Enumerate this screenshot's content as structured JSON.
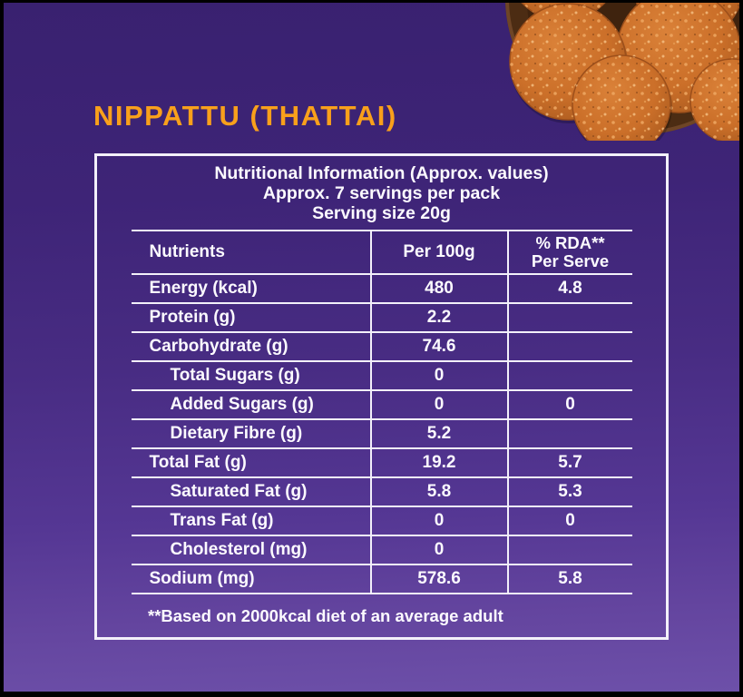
{
  "page": {
    "title": "NIPPATTU (THATTAI)"
  },
  "photo": {
    "alt": "plate-of-nippattu-crackers"
  },
  "table": {
    "header_lines": [
      "Nutritional Information (Approx. values)",
      "Approx. 7 servings per pack",
      "Serving size 20g"
    ],
    "columns": {
      "nutrients": "Nutrients",
      "per100g": "Per 100g",
      "rda_line1": "% RDA**",
      "rda_line2": "Per Serve"
    },
    "rows": [
      {
        "label": "Energy (kcal)",
        "per100g": "480",
        "rda": "4.8",
        "indent": false
      },
      {
        "label": "Protein (g)",
        "per100g": "2.2",
        "rda": "",
        "indent": false
      },
      {
        "label": "Carbohydrate (g)",
        "per100g": "74.6",
        "rda": "",
        "indent": false
      },
      {
        "label": "Total Sugars (g)",
        "per100g": "0",
        "rda": "",
        "indent": true
      },
      {
        "label": "Added Sugars (g)",
        "per100g": "0",
        "rda": "0",
        "indent": true
      },
      {
        "label": "Dietary Fibre (g)",
        "per100g": "5.2",
        "rda": "",
        "indent": true
      },
      {
        "label": "Total Fat (g)",
        "per100g": "19.2",
        "rda": "5.7",
        "indent": false
      },
      {
        "label": "Saturated Fat (g)",
        "per100g": "5.8",
        "rda": "5.3",
        "indent": true
      },
      {
        "label": "Trans Fat (g)",
        "per100g": "0",
        "rda": "0",
        "indent": true
      },
      {
        "label": "Cholesterol (mg)",
        "per100g": "0",
        "rda": "",
        "indent": true
      },
      {
        "label": "Sodium (mg)",
        "per100g": "578.6",
        "rda": "5.8",
        "indent": false
      }
    ],
    "footnote": "**Based on 2000kcal diet of an average adult"
  },
  "colors": {
    "accent_orange": "#F9A01B",
    "background_top": "#392170",
    "background_bottom": "#6D50A9",
    "table_lines": "#F3F0FA",
    "text": "#FFFFFF",
    "cracker": "#C96D28",
    "plate": "#4C2C13"
  }
}
